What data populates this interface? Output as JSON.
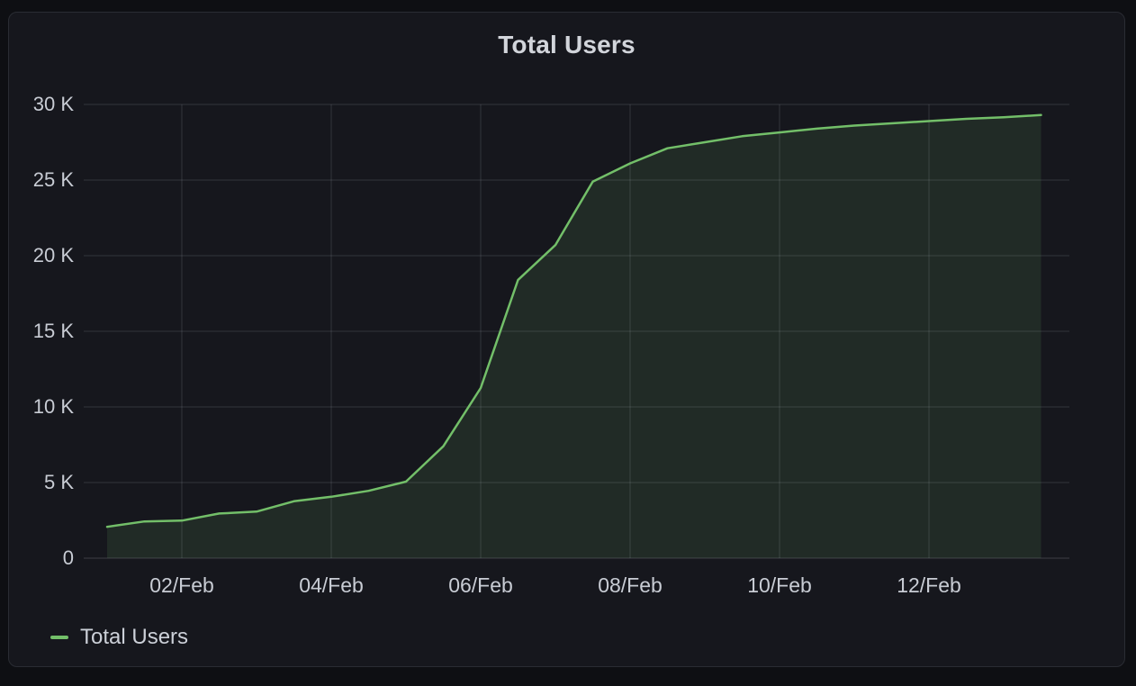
{
  "panel": {
    "title": "Total Users"
  },
  "legend": {
    "items": [
      {
        "label": "Total Users",
        "color": "#73bf69"
      }
    ]
  },
  "colors": {
    "page_bg": "#0e0f13",
    "panel_bg": "#16171d",
    "panel_border": "#2a2c33",
    "grid": "rgba(200,204,216,0.16)",
    "zero_line": "rgba(200,204,216,0.22)",
    "axis_text": "#c8ccd4",
    "title_text": "#d2d5db",
    "series_line": "#73bf69",
    "series_fill": "rgba(115,191,105,0.12)"
  },
  "chart_data": {
    "type": "area",
    "title": "Total Users",
    "xlabel": "",
    "ylabel": "",
    "ylim": [
      0,
      30000
    ],
    "x_domain_days": [
      -0.34,
      12.88
    ],
    "grid": true,
    "legend_position": "bottom-left",
    "y_ticks": [
      {
        "value": 0,
        "label": "0"
      },
      {
        "value": 5000,
        "label": "5 K"
      },
      {
        "value": 10000,
        "label": "10 K"
      },
      {
        "value": 15000,
        "label": "15 K"
      },
      {
        "value": 20000,
        "label": "20 K"
      },
      {
        "value": 25000,
        "label": "25 K"
      },
      {
        "value": 30000,
        "label": "30 K"
      }
    ],
    "x_ticks": [
      {
        "day": 1,
        "label": "02/Feb"
      },
      {
        "day": 3,
        "label": "04/Feb"
      },
      {
        "day": 5,
        "label": "06/Feb"
      },
      {
        "day": 7,
        "label": "08/Feb"
      },
      {
        "day": 9,
        "label": "10/Feb"
      },
      {
        "day": 11,
        "label": "12/Feb"
      }
    ],
    "series": [
      {
        "name": "Total Users",
        "color": "#73bf69",
        "fill_opacity": 0.12,
        "line_width": 2.5,
        "points": [
          {
            "t": "01/Feb 00:00",
            "day": 0,
            "v": 2070
          },
          {
            "t": "01/Feb 12:00",
            "day": 0.5,
            "v": 2430
          },
          {
            "t": "02/Feb 00:00",
            "day": 1,
            "v": 2480
          },
          {
            "t": "02/Feb 12:00",
            "day": 1.5,
            "v": 2950
          },
          {
            "t": "03/Feb 00:00",
            "day": 2,
            "v": 3080
          },
          {
            "t": "03/Feb 12:00",
            "day": 2.5,
            "v": 3760
          },
          {
            "t": "04/Feb 00:00",
            "day": 3,
            "v": 4060
          },
          {
            "t": "04/Feb 12:00",
            "day": 3.5,
            "v": 4450
          },
          {
            "t": "05/Feb 00:00",
            "day": 4,
            "v": 5060
          },
          {
            "t": "05/Feb 12:00",
            "day": 4.5,
            "v": 7400
          },
          {
            "t": "06/Feb 00:00",
            "day": 5,
            "v": 11250
          },
          {
            "t": "06/Feb 12:00",
            "day": 5.5,
            "v": 18400
          },
          {
            "t": "07/Feb 00:00",
            "day": 6,
            "v": 20700
          },
          {
            "t": "07/Feb 12:00",
            "day": 6.5,
            "v": 24900
          },
          {
            "t": "08/Feb 00:00",
            "day": 7,
            "v": 26100
          },
          {
            "t": "08/Feb 12:00",
            "day": 7.5,
            "v": 27100
          },
          {
            "t": "09/Feb 00:00",
            "day": 8,
            "v": 27500
          },
          {
            "t": "09/Feb 12:00",
            "day": 8.5,
            "v": 27900
          },
          {
            "t": "10/Feb 00:00",
            "day": 9,
            "v": 28150
          },
          {
            "t": "10/Feb 12:00",
            "day": 9.5,
            "v": 28400
          },
          {
            "t": "11/Feb 00:00",
            "day": 10,
            "v": 28600
          },
          {
            "t": "11/Feb 12:00",
            "day": 10.5,
            "v": 28750
          },
          {
            "t": "12/Feb 00:00",
            "day": 11,
            "v": 28900
          },
          {
            "t": "12/Feb 12:00",
            "day": 11.5,
            "v": 29050
          },
          {
            "t": "13/Feb 00:00",
            "day": 12,
            "v": 29150
          },
          {
            "t": "13/Feb 12:00",
            "day": 12.5,
            "v": 29300
          }
        ]
      }
    ]
  }
}
